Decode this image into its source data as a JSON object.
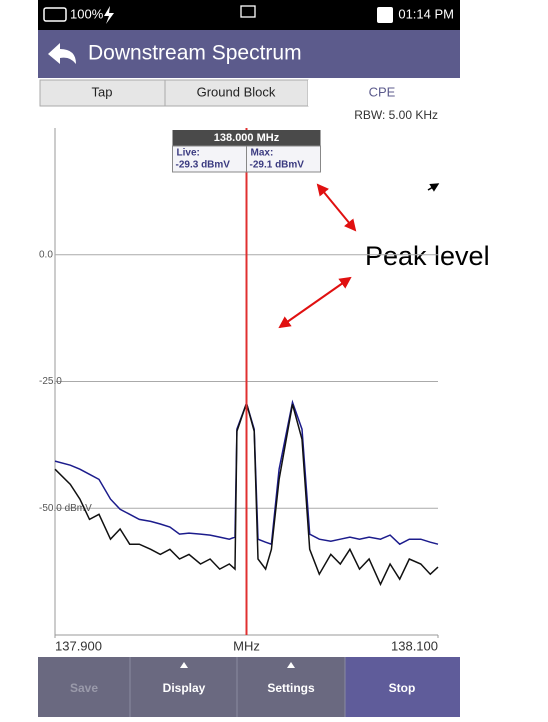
{
  "status_bar": {
    "battery": "100%",
    "time": "01:14 PM"
  },
  "header": {
    "title": "Downstream Spectrum"
  },
  "tabs": [
    "Tap",
    "Ground Block",
    "CPE"
  ],
  "rbw": "RBW: 5.00 KHz",
  "chart_data": {
    "type": "line",
    "x": [
      137.9,
      137.908,
      137.913,
      137.918,
      137.923,
      137.929,
      137.934,
      137.939,
      137.944,
      137.95,
      137.955,
      137.96,
      137.965,
      137.97,
      137.976,
      137.981,
      137.986,
      137.991,
      137.994,
      137.995,
      138.0,
      138.004,
      138.006,
      138.01,
      138.013,
      138.017,
      138.024,
      138.029,
      138.033,
      138.038,
      138.044,
      138.049,
      138.054,
      138.059,
      138.064,
      138.07,
      138.075,
      138.08,
      138.085,
      138.091,
      138.096,
      138.1
    ],
    "series": [
      {
        "color": "#1c1c8c",
        "values": [
          -40.7,
          -41.5,
          -42.3,
          -43.3,
          -44.3,
          -48.2,
          -50.2,
          -51.2,
          -52.2,
          -52.6,
          -53.1,
          -53.7,
          -55.1,
          -54.9,
          -55.1,
          -55.3,
          -55.7,
          -56.1,
          -55.7,
          -34.4,
          -29.3,
          -34.4,
          -56.1,
          -56.7,
          -57.1,
          -42.3,
          -29.1,
          -34.4,
          -55.1,
          -56.1,
          -56.5,
          -56.1,
          -55.7,
          -56.1,
          -55.7,
          -56.1,
          -55.3,
          -57.1,
          -56.1,
          -56.1,
          -56.7,
          -57.1
        ]
      },
      {
        "color": "#111111",
        "values": [
          -42.3,
          -45.3,
          -48.2,
          -52.2,
          -51.2,
          -56.1,
          -54.1,
          -57.1,
          -57.1,
          -58.1,
          -59.1,
          -58.1,
          -60.0,
          -59.1,
          -61.0,
          -60.0,
          -62.0,
          -61.0,
          -62.0,
          -34.8,
          -29.3,
          -34.8,
          -60.0,
          -62.0,
          -58.1,
          -44.3,
          -29.5,
          -36.4,
          -58.1,
          -63.0,
          -59.1,
          -61.0,
          -58.1,
          -62.0,
          -60.0,
          -65.0,
          -61.0,
          -64.0,
          -60.0,
          -61.0,
          -63.0,
          -61.6
        ]
      }
    ],
    "xlim": [
      137.9,
      138.1
    ],
    "xticks": [
      {
        "value": 137.9,
        "label": "137.900"
      },
      {
        "value": 138.1,
        "label": "138.100"
      }
    ],
    "xlabel": "MHz",
    "ylim": [
      -75,
      25
    ],
    "yticks": [
      {
        "value": 0,
        "label": "0.0"
      },
      {
        "value": -25,
        "label": "-25.0"
      },
      {
        "value": -50,
        "label": "-50.0 dBmV"
      }
    ],
    "grid": true,
    "marker": {
      "x": 138.0,
      "color": "#e03030",
      "x_label": "138.000 MHz",
      "readouts": [
        {
          "name": "Live:",
          "value_label": "-29.3 dBmV"
        },
        {
          "name": "Max:",
          "value_label": "-29.1 dBmV"
        }
      ]
    }
  },
  "annotation": "Peak level",
  "buttons": [
    "Save",
    "Display",
    "Settings",
    "Stop"
  ]
}
